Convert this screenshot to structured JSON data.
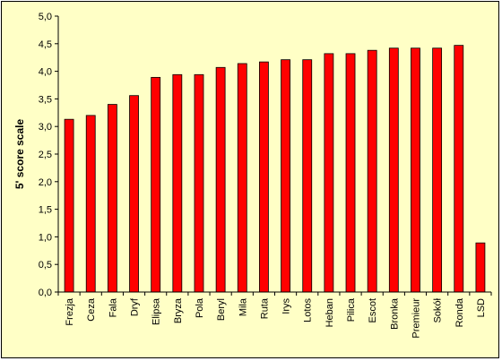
{
  "chart_data": {
    "type": "bar",
    "title": "",
    "xlabel": "",
    "ylabel": "5' score scale",
    "ylim": [
      0,
      5
    ],
    "ytick_step": 0.5,
    "ytick_labels": [
      "0,0",
      "0,5",
      "1,0",
      "1,5",
      "2,0",
      "2,5",
      "3,0",
      "3,5",
      "4,0",
      "4,5",
      "5,0"
    ],
    "grid": false,
    "legend": "none",
    "categories": [
      "Frezja",
      "Ceza",
      "Fala",
      "Dryf",
      "Elipsa",
      "Bryza",
      "Pola",
      "Beryl",
      "Mila",
      "Ruta",
      "Irys",
      "Lotos",
      "Heban",
      "Pilica",
      "Escot",
      "Bronka",
      "Premieur",
      "Sokół",
      "Ronda",
      "LSD"
    ],
    "values": [
      3.13,
      3.2,
      3.4,
      3.56,
      3.89,
      3.94,
      3.94,
      4.07,
      4.14,
      4.17,
      4.21,
      4.21,
      4.32,
      4.32,
      4.38,
      4.42,
      4.42,
      4.42,
      4.47,
      0.89
    ],
    "colors": {
      "bar": "#ff0000",
      "bar_stroke": "#000000",
      "plot_bg": "#ffffc6",
      "axis": "#000000"
    }
  }
}
